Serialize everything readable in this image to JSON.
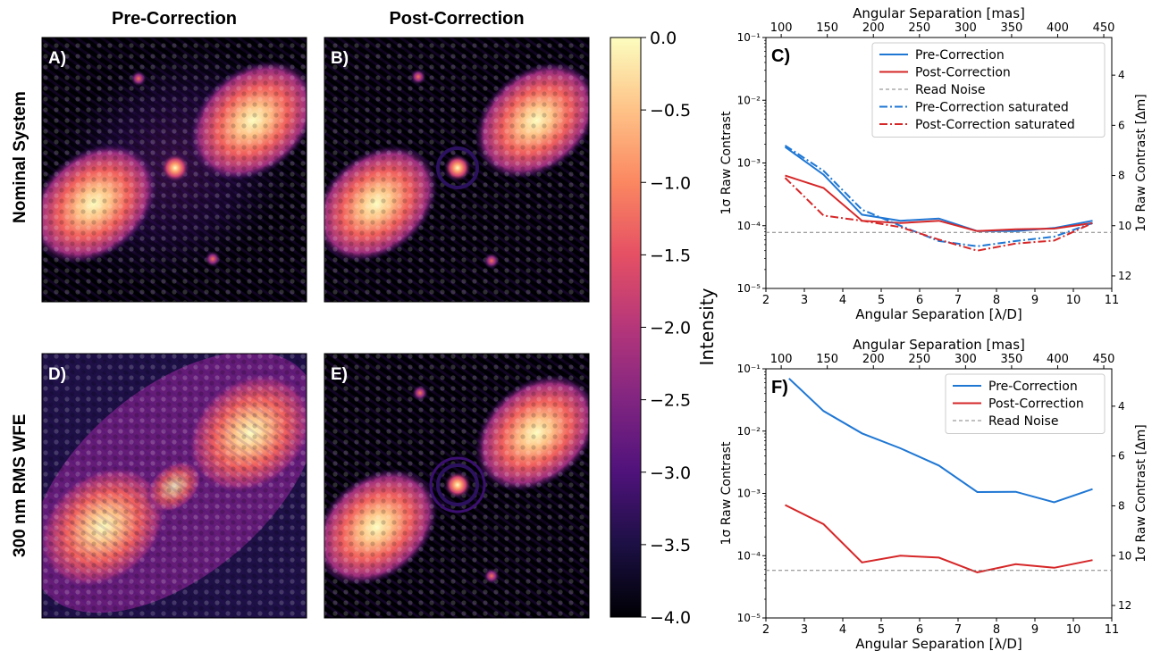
{
  "column_titles": [
    "Pre-Correction",
    "Post-Correction"
  ],
  "row_titles": [
    "Nominal System",
    "300 nm RMS WFE"
  ],
  "image_panels": [
    {
      "label": "A)",
      "colormap": "magma",
      "scenario": "nominal-pre"
    },
    {
      "label": "B)",
      "colormap": "magma",
      "scenario": "nominal-post"
    },
    {
      "label": "D)",
      "colormap": "magma",
      "scenario": "wfe-pre"
    },
    {
      "label": "E)",
      "colormap": "magma",
      "scenario": "wfe-post"
    }
  ],
  "colorbar": {
    "label": "Intensity",
    "range": [
      -4.0,
      0.0
    ],
    "ticks": [
      "0.0",
      "−0.5",
      "−1.0",
      "−1.5",
      "−2.0",
      "−2.5",
      "−3.0",
      "−3.5",
      "−4.0"
    ],
    "colormap": "magma"
  },
  "colors": {
    "pre": "#1f77d4",
    "post": "#d62728",
    "read_noise": "#808080"
  },
  "chart_data": [
    {
      "panel": "C)",
      "type": "line",
      "xlabel": "Angular Separation [λ/D]",
      "x2label": "Angular Separation [mas]",
      "ylabel": "1σ Raw Contrast",
      "y2label": "1σ Raw Contrast [Δm]",
      "xlim": [
        2,
        11
      ],
      "ylim": [
        1e-05,
        0.1
      ],
      "yscale": "log",
      "xticks": [
        "2",
        "3",
        "4",
        "5",
        "6",
        "7",
        "8",
        "9",
        "10",
        "11"
      ],
      "x2ticks": [
        "100",
        "150",
        "200",
        "250",
        "300",
        "350",
        "400",
        "450"
      ],
      "yticks": [
        "10⁻⁵",
        "10⁻⁴",
        "10⁻³",
        "10⁻²",
        "10⁻¹"
      ],
      "y2ticks": [
        "4",
        "6",
        "8",
        "10",
        "12"
      ],
      "legend_position": "top-right",
      "series": [
        {
          "name": "Pre-Correction",
          "style": "solid",
          "color": "#1f77d4",
          "x": [
            2.5,
            3.5,
            4.5,
            5.5,
            6.5,
            7.5,
            8.5,
            9.5,
            10.5
          ],
          "y": [
            0.0018,
            0.00065,
            0.00015,
            0.00012,
            0.00013,
            8.2e-05,
            8.2e-05,
            9.2e-05,
            0.00012
          ]
        },
        {
          "name": "Post-Correction",
          "style": "solid",
          "color": "#d62728",
          "x": [
            2.5,
            3.5,
            4.5,
            5.5,
            6.5,
            7.5,
            8.5,
            9.5,
            10.5
          ],
          "y": [
            0.00063,
            0.0004,
            0.00012,
            0.00011,
            0.00012,
            8.2e-05,
            8.8e-05,
            9e-05,
            0.00011
          ]
        },
        {
          "name": "Read Noise",
          "style": "dashed",
          "color": "#808080",
          "x": [
            2,
            11
          ],
          "y": [
            7.8e-05,
            7.8e-05
          ]
        },
        {
          "name": "Pre-Correction saturated",
          "style": "dashdot",
          "color": "#1f77d4",
          "x": [
            2.5,
            3.5,
            4.5,
            5.5,
            6.5,
            7.5,
            8.5,
            9.5,
            10.5
          ],
          "y": [
            0.0019,
            0.00075,
            0.00018,
            0.0001,
            5.7e-05,
            4.7e-05,
            5.7e-05,
            6.7e-05,
            0.00011
          ]
        },
        {
          "name": "Post-Correction saturated",
          "style": "dashdot",
          "color": "#d62728",
          "x": [
            2.5,
            3.5,
            4.5,
            5.5,
            6.5,
            7.5,
            8.5,
            9.5,
            10.5
          ],
          "y": [
            0.00058,
            0.000145,
            0.00012,
            9.5e-05,
            6e-05,
            4e-05,
            5.2e-05,
            5.8e-05,
            0.00011
          ]
        }
      ]
    },
    {
      "panel": "F)",
      "type": "line",
      "xlabel": "Angular Separation [λ/D]",
      "x2label": "Angular Separation [mas]",
      "ylabel": "1σ Raw Contrast",
      "y2label": "1σ Raw Contrast [Δm]",
      "xlim": [
        2,
        11
      ],
      "ylim": [
        1e-05,
        0.1
      ],
      "yscale": "log",
      "xticks": [
        "2",
        "3",
        "4",
        "5",
        "6",
        "7",
        "8",
        "9",
        "10",
        "11"
      ],
      "x2ticks": [
        "100",
        "150",
        "200",
        "250",
        "300",
        "350",
        "400",
        "450"
      ],
      "yticks": [
        "10⁻⁵",
        "10⁻⁴",
        "10⁻³",
        "10⁻²",
        "10⁻¹"
      ],
      "y2ticks": [
        "4",
        "6",
        "8",
        "10",
        "12"
      ],
      "legend_position": "top-right",
      "series": [
        {
          "name": "Pre-Correction",
          "style": "solid",
          "color": "#1f77d4",
          "x": [
            2.6,
            3.5,
            4.5,
            5.5,
            6.5,
            7.5,
            8.5,
            9.5,
            10.5
          ],
          "y": [
            0.07,
            0.021,
            0.0092,
            0.0053,
            0.0028,
            0.00105,
            0.00106,
            0.00072,
            0.00117
          ]
        },
        {
          "name": "Post-Correction",
          "style": "solid",
          "color": "#d62728",
          "x": [
            2.5,
            3.5,
            4.5,
            5.5,
            6.5,
            7.5,
            8.5,
            9.5,
            10.5
          ],
          "y": [
            0.00065,
            0.00032,
            7.8e-05,
            0.0001,
            9.3e-05,
            5.4e-05,
            7.3e-05,
            6.4e-05,
            8.5e-05
          ]
        },
        {
          "name": "Read Noise",
          "style": "dashed",
          "color": "#808080",
          "x": [
            2,
            11
          ],
          "y": [
            5.8e-05,
            5.8e-05
          ]
        }
      ]
    }
  ]
}
